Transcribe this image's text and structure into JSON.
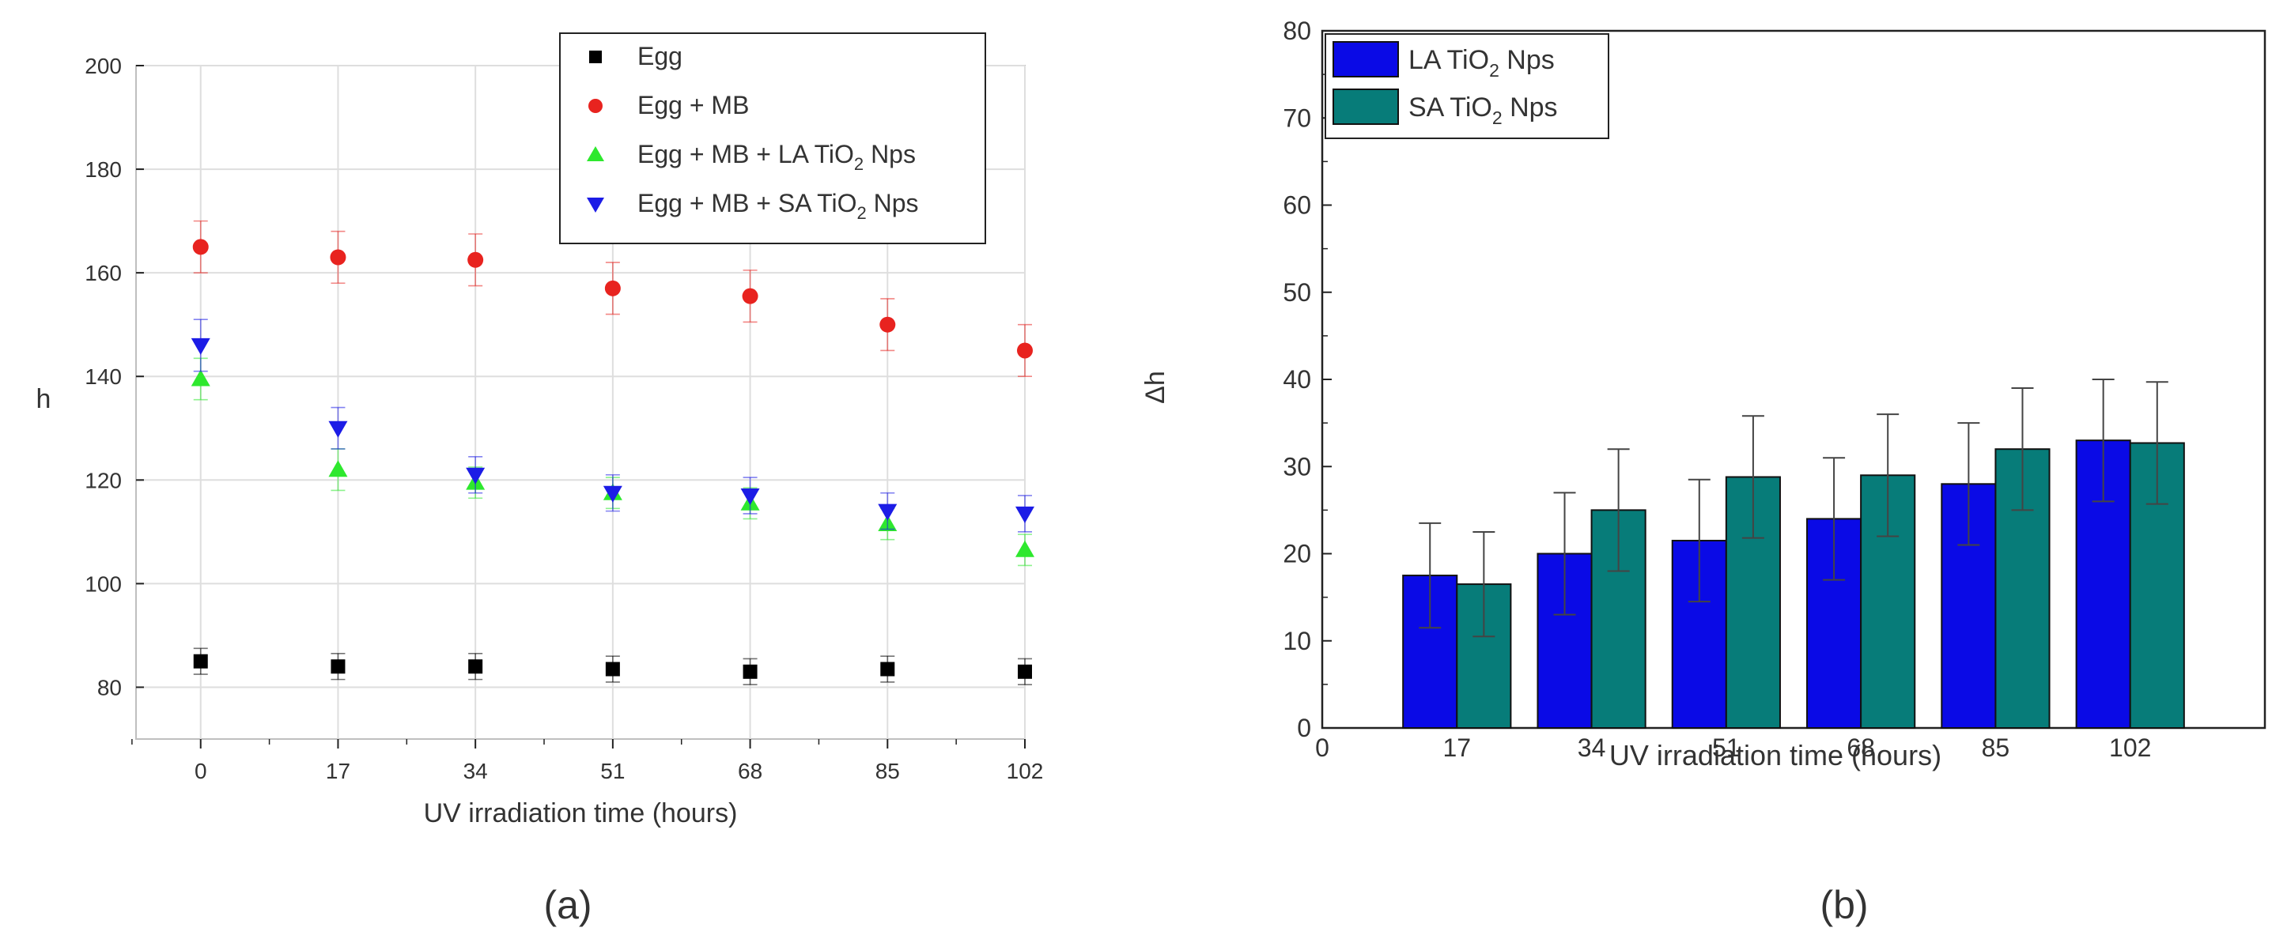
{
  "chart_data": [
    {
      "type": "scatter",
      "panel_label": "(a)",
      "title": "",
      "xlabel": "UV irradiation time (hours)",
      "ylabel": "h",
      "x": [
        0,
        17,
        34,
        51,
        68,
        85,
        102
      ],
      "x_tick_labels": [
        "0",
        "17",
        "34",
        "51",
        "68",
        "85",
        "102"
      ],
      "xlim": [
        -8,
        102
      ],
      "ylim": [
        70,
        200
      ],
      "y_ticks": [
        80,
        100,
        120,
        140,
        160,
        180,
        200
      ],
      "grid": true,
      "legend_position": "top-right",
      "series": [
        {
          "name": "Egg",
          "legend_label": {
            "main": "Egg",
            "sub": "",
            "tail": ""
          },
          "marker": "square",
          "color": "#000000",
          "values": [
            85,
            84,
            84,
            83.5,
            83,
            83.5,
            83
          ],
          "errors": [
            2.5,
            2.5,
            2.5,
            2.5,
            2.5,
            2.5,
            2.5
          ]
        },
        {
          "name": "Egg + MB",
          "legend_label": {
            "main": "Egg + MB",
            "sub": "",
            "tail": ""
          },
          "marker": "circle",
          "color": "#e8231f",
          "values": [
            165,
            163,
            162.5,
            157,
            155.5,
            150,
            145
          ],
          "errors": [
            5,
            5,
            5,
            5,
            5,
            5,
            5
          ]
        },
        {
          "name": "Egg + MB + LA TiO2 Nps",
          "legend_label": {
            "main": "Egg + MB + LA TiO",
            "sub": "2",
            "tail": " Nps"
          },
          "marker": "triangle-up",
          "color": "#2ee82e",
          "values": [
            139.5,
            122,
            119.5,
            117.5,
            115.5,
            111.5,
            106.5
          ],
          "errors": [
            4,
            4,
            3,
            3,
            3,
            3,
            3
          ]
        },
        {
          "name": "Egg + MB + SA TiO2 Nps",
          "legend_label": {
            "main": "Egg + MB + SA TiO",
            "sub": "2",
            "tail": " Nps"
          },
          "marker": "triangle-down",
          "color": "#1c1ce6",
          "values": [
            146,
            130,
            121,
            117.5,
            117,
            114,
            113.5
          ],
          "errors": [
            5,
            4,
            3.5,
            3.5,
            3.5,
            3.5,
            3.5
          ]
        }
      ]
    },
    {
      "type": "bar",
      "panel_label": "(b)",
      "title": "",
      "xlabel": "UV irradiation time (hours)",
      "ylabel": "Δh",
      "categories": [
        "17",
        "34",
        "51",
        "68",
        "85",
        "102"
      ],
      "origin_tick_label": "0",
      "ylim": [
        0,
        80
      ],
      "y_ticks": [
        0,
        10,
        20,
        30,
        40,
        50,
        60,
        70,
        80
      ],
      "grid": false,
      "legend_position": "top-left",
      "series": [
        {
          "name": "LA TiO2 Nps",
          "legend_label": {
            "main": "LA TiO",
            "sub": "2",
            "tail": " Nps"
          },
          "color": "#0a0ae6",
          "values": [
            17.5,
            20,
            21.5,
            24,
            28,
            33
          ],
          "errors": [
            6,
            7,
            7,
            7,
            7,
            7
          ]
        },
        {
          "name": "SA TiO2 Nps",
          "legend_label": {
            "main": "SA TiO",
            "sub": "2",
            "tail": " Nps"
          },
          "color": "#077c79",
          "values": [
            16.5,
            25,
            28.8,
            29,
            32,
            32.7
          ],
          "errors": [
            6,
            7,
            7,
            7,
            7,
            7
          ]
        }
      ]
    }
  ]
}
